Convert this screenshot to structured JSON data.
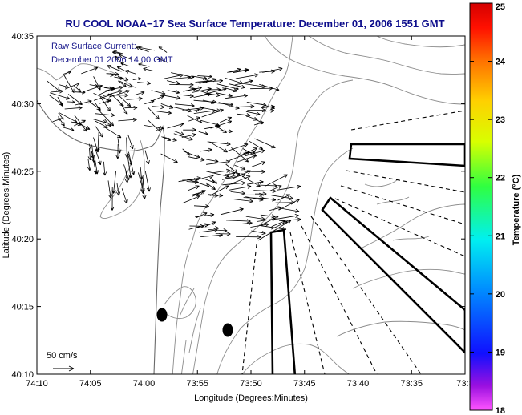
{
  "title": "RU COOL  NOAA−17  Sea Surface Temperature:  December 01, 2006 1551 GMT",
  "annotation": {
    "line1": "Raw Surface Current:",
    "line2": "December 01 2006 14:00 GMT"
  },
  "scale_label": "50 cm/s",
  "colors": {
    "title": "#0d0d8c",
    "annotation": "#1a1a8c",
    "contour": "#8c8c8c",
    "vectors": "#000000"
  },
  "chart_data": {
    "type": "map",
    "xlabel": "Longitude (Degrees:Minutes)",
    "ylabel": "Latitude (Degrees:Minutes)",
    "x_ticks": [
      "74:10",
      "74:05",
      "74:00",
      "73:55",
      "73:50",
      "73:45",
      "73:40",
      "73:35",
      "73:3"
    ],
    "y_ticks": [
      "40:35",
      "40:30",
      "40:25",
      "40:20",
      "40:15",
      "40:10"
    ],
    "colorbar": {
      "label": "Temperature (°C)",
      "ticks": [
        "25",
        "24",
        "23",
        "22",
        "21",
        "20",
        "19",
        "18"
      ],
      "range": [
        18,
        25
      ]
    }
  }
}
